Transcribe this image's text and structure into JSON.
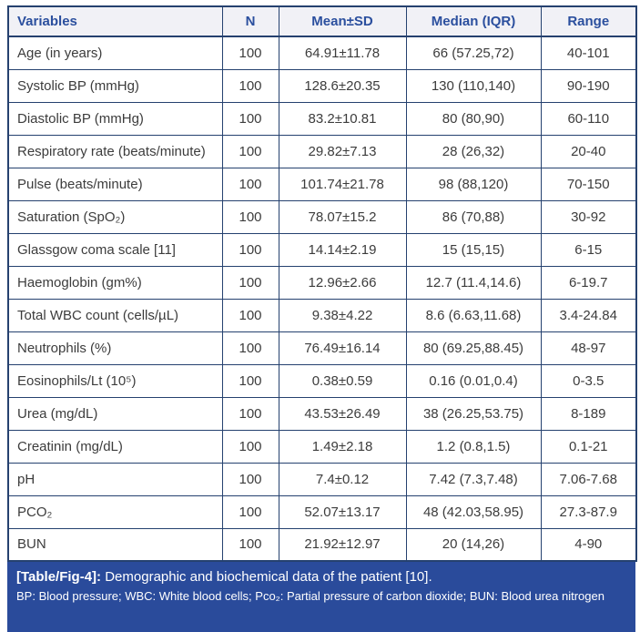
{
  "colors": {
    "border": "#25416f",
    "header_text": "#2b4f9e",
    "header_bg": "#f1f1f6",
    "body_text": "#3c3c3c",
    "caption_bg": "#2a4b9b",
    "caption_text": "#ffffff"
  },
  "table": {
    "columns": [
      "Variables",
      "N",
      "Mean±SD",
      "Median (IQR)",
      "Range"
    ],
    "rows": [
      {
        "variable": "Age (in years)",
        "n": "100",
        "mean_sd": "64.91±11.78",
        "median_iqr": "66 (57.25,72)",
        "range": "40-101"
      },
      {
        "variable": "Systolic BP (mmHg)",
        "n": "100",
        "mean_sd": "128.6±20.35",
        "median_iqr": "130 (110,140)",
        "range": "90-190"
      },
      {
        "variable": "Diastolic BP (mmHg)",
        "n": "100",
        "mean_sd": "83.2±10.81",
        "median_iqr": "80 (80,90)",
        "range": "60-110"
      },
      {
        "variable": "Respiratory rate (beats/minute)",
        "n": "100",
        "mean_sd": "29.82±7.13",
        "median_iqr": "28 (26,32)",
        "range": "20-40"
      },
      {
        "variable": "Pulse (beats/minute)",
        "n": "100",
        "mean_sd": "101.74±21.78",
        "median_iqr": "98 (88,120)",
        "range": "70-150"
      },
      {
        "variable": "Saturation (SpO₂)",
        "n": "100",
        "mean_sd": "78.07±15.2",
        "median_iqr": "86 (70,88)",
        "range": "30-92"
      },
      {
        "variable": "Glassgow coma scale [11]",
        "n": "100",
        "mean_sd": "14.14±2.19",
        "median_iqr": "15 (15,15)",
        "range": "6-15"
      },
      {
        "variable": "Haemoglobin (gm%)",
        "n": "100",
        "mean_sd": "12.96±2.66",
        "median_iqr": "12.7 (11.4,14.6)",
        "range": "6-19.7"
      },
      {
        "variable": "Total WBC count (cells/µL)",
        "n": "100",
        "mean_sd": "9.38±4.22",
        "median_iqr": "8.6 (6.63,11.68)",
        "range": "3.4-24.84"
      },
      {
        "variable": "Neutrophils (%)",
        "n": "100",
        "mean_sd": "76.49±16.14",
        "median_iqr": "80 (69.25,88.45)",
        "range": "48-97"
      },
      {
        "variable": "Eosinophils/Lt (10⁵)",
        "n": "100",
        "mean_sd": "0.38±0.59",
        "median_iqr": "0.16 (0.01,0.4)",
        "range": "0-3.5"
      },
      {
        "variable": "Urea (mg/dL)",
        "n": "100",
        "mean_sd": "43.53±26.49",
        "median_iqr": "38 (26.25,53.75)",
        "range": "8-189"
      },
      {
        "variable": "Creatinin (mg/dL)",
        "n": "100",
        "mean_sd": "1.49±2.18",
        "median_iqr": "1.2 (0.8,1.5)",
        "range": "0.1-21"
      },
      {
        "variable": "pH",
        "n": "100",
        "mean_sd": "7.4±0.12",
        "median_iqr": "7.42 (7.3,7.48)",
        "range": "7.06-7.68"
      },
      {
        "variable": "PCO₂",
        "n": "100",
        "mean_sd": "52.07±13.17",
        "median_iqr": "48 (42.03,58.95)",
        "range": "27.3-87.9"
      },
      {
        "variable": "BUN",
        "n": "100",
        "mean_sd": "21.92±12.97",
        "median_iqr": "20 (14,26)",
        "range": "4-90"
      }
    ]
  },
  "caption": {
    "label": "[Table/Fig-4]:",
    "text": "Demographic and biochemical data of the patient [10].",
    "abbreviations": "BP: Blood pressure; WBC: White blood cells; Pco₂: Partial pressure of carbon dioxide; BUN: Blood urea nitrogen"
  }
}
